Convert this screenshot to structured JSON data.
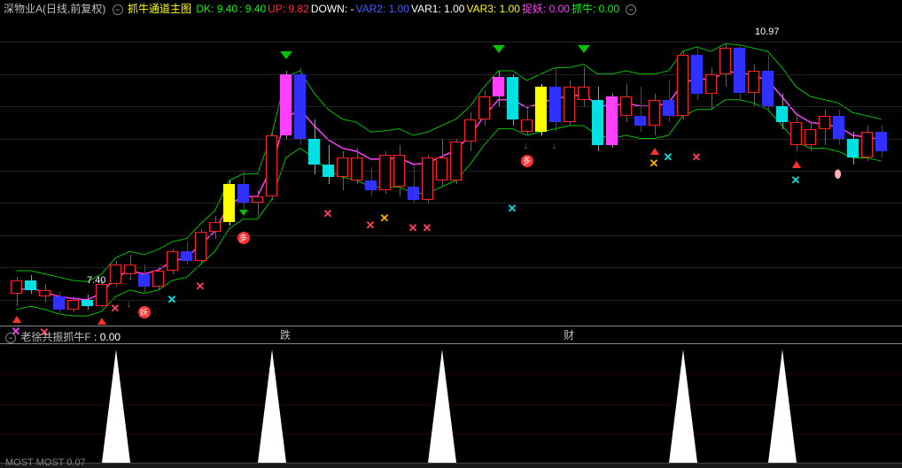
{
  "header": {
    "stock_name": "深物业A(日线,前复权)",
    "indicator_name": "抓牛通道主图",
    "items": [
      {
        "label": "DK:",
        "value": "9.40",
        "color": "#00ff00"
      },
      {
        "label": " : ",
        "value": "9.40",
        "color": "#00ff00"
      },
      {
        "label": " UP:",
        "value": "9.82",
        "color": "#ff3030"
      },
      {
        "label": " DOWN:",
        "value": "-",
        "color": "#ffffff"
      },
      {
        "label": "  VAR2:",
        "value": "1.00",
        "color": "#4060ff"
      },
      {
        "label": "  VAR1:",
        "value": "1.00",
        "color": "#ffffff"
      },
      {
        "label": "  VAR3:",
        "value": "1.00",
        "color": "#ffff00"
      },
      {
        "label": "  捉妖:",
        "value": "0.00",
        "color": "#ff40ff"
      },
      {
        "label": "  抓牛:",
        "value": "0.00",
        "color": "#00ff00"
      }
    ]
  },
  "chart": {
    "ylim": [
      6.6,
      11.4
    ],
    "grid_y": [
      7.0,
      7.5,
      8.0,
      8.5,
      9.0,
      9.5,
      10.0,
      10.5,
      11.0
    ],
    "price_labels": [
      {
        "text": "7.40",
        "x": 98,
        "y_price": 7.3
      },
      {
        "text": "10.97",
        "x": 852,
        "y_price": 11.15
      }
    ],
    "candle_width": 13,
    "candle_gap": 3,
    "x_start": 12,
    "candles": [
      {
        "o": 7.1,
        "h": 7.35,
        "l": 6.9,
        "c": 7.3,
        "col": "#ff2020"
      },
      {
        "o": 7.3,
        "h": 7.38,
        "l": 7.1,
        "c": 7.15,
        "col": "#00e0e0"
      },
      {
        "o": 7.15,
        "h": 7.25,
        "l": 6.95,
        "c": 7.05,
        "col": "#ff2020"
      },
      {
        "o": 7.05,
        "h": 7.12,
        "l": 6.8,
        "c": 6.85,
        "col": "#3030ff"
      },
      {
        "o": 6.85,
        "h": 7.05,
        "l": 6.8,
        "c": 7.0,
        "col": "#ff2020"
      },
      {
        "o": 7.0,
        "h": 7.08,
        "l": 6.85,
        "c": 6.9,
        "col": "#00e0e0"
      },
      {
        "o": 6.9,
        "h": 7.3,
        "l": 6.88,
        "c": 7.25,
        "col": "#ff2020"
      },
      {
        "o": 7.25,
        "h": 7.6,
        "l": 7.2,
        "c": 7.55,
        "col": "#ff2020"
      },
      {
        "o": 7.55,
        "h": 7.7,
        "l": 7.3,
        "c": 7.4,
        "col": "#ff2020"
      },
      {
        "o": 7.4,
        "h": 7.55,
        "l": 7.1,
        "c": 7.2,
        "col": "#3030ff"
      },
      {
        "o": 7.2,
        "h": 7.5,
        "l": 7.15,
        "c": 7.45,
        "col": "#ff2020"
      },
      {
        "o": 7.45,
        "h": 7.8,
        "l": 7.4,
        "c": 7.75,
        "col": "#ff2020"
      },
      {
        "o": 7.75,
        "h": 7.9,
        "l": 7.55,
        "c": 7.6,
        "col": "#3030ff"
      },
      {
        "o": 7.6,
        "h": 8.1,
        "l": 7.55,
        "c": 8.05,
        "col": "#ff2020"
      },
      {
        "o": 8.05,
        "h": 8.3,
        "l": 7.95,
        "c": 8.2,
        "col": "#ff2020"
      },
      {
        "o": 8.2,
        "h": 8.85,
        "l": 8.15,
        "c": 8.8,
        "col": "#ffff00"
      },
      {
        "o": 8.8,
        "h": 9.0,
        "l": 8.4,
        "c": 8.5,
        "col": "#3030ff"
      },
      {
        "o": 8.5,
        "h": 8.7,
        "l": 8.3,
        "c": 8.6,
        "col": "#ff2020"
      },
      {
        "o": 8.6,
        "h": 9.6,
        "l": 8.55,
        "c": 9.55,
        "col": "#ff2020"
      },
      {
        "o": 9.55,
        "h": 10.55,
        "l": 9.5,
        "c": 10.5,
        "col": "#ff40ff"
      },
      {
        "o": 10.5,
        "h": 10.6,
        "l": 9.4,
        "c": 9.5,
        "col": "#3030ff"
      },
      {
        "o": 9.5,
        "h": 9.8,
        "l": 8.95,
        "c": 9.1,
        "col": "#00e0e0"
      },
      {
        "o": 9.1,
        "h": 9.4,
        "l": 8.8,
        "c": 8.9,
        "col": "#00e0e0"
      },
      {
        "o": 8.9,
        "h": 9.3,
        "l": 8.7,
        "c": 9.2,
        "col": "#ff2020"
      },
      {
        "o": 9.2,
        "h": 9.35,
        "l": 8.8,
        "c": 8.85,
        "col": "#ff2020"
      },
      {
        "o": 8.85,
        "h": 9.05,
        "l": 8.6,
        "c": 8.7,
        "col": "#3030ff"
      },
      {
        "o": 8.7,
        "h": 9.3,
        "l": 8.65,
        "c": 9.25,
        "col": "#ff2020"
      },
      {
        "o": 9.25,
        "h": 9.4,
        "l": 8.6,
        "c": 8.75,
        "col": "#ff2020"
      },
      {
        "o": 8.75,
        "h": 9.1,
        "l": 8.5,
        "c": 8.55,
        "col": "#3030ff"
      },
      {
        "o": 8.55,
        "h": 9.25,
        "l": 8.5,
        "c": 9.2,
        "col": "#ff2020"
      },
      {
        "o": 9.2,
        "h": 9.5,
        "l": 8.75,
        "c": 8.85,
        "col": "#ff2020"
      },
      {
        "o": 8.85,
        "h": 9.5,
        "l": 8.8,
        "c": 9.45,
        "col": "#ff2020"
      },
      {
        "o": 9.45,
        "h": 9.9,
        "l": 9.3,
        "c": 9.8,
        "col": "#ff2020"
      },
      {
        "o": 9.8,
        "h": 10.25,
        "l": 9.7,
        "c": 10.15,
        "col": "#ff2020"
      },
      {
        "o": 10.15,
        "h": 10.55,
        "l": 10.0,
        "c": 10.45,
        "col": "#ff40ff"
      },
      {
        "o": 10.45,
        "h": 10.5,
        "l": 9.7,
        "c": 9.8,
        "col": "#00e0e0"
      },
      {
        "o": 9.8,
        "h": 10.0,
        "l": 9.55,
        "c": 9.6,
        "col": "#ff2020"
      },
      {
        "o": 9.6,
        "h": 10.35,
        "l": 9.55,
        "c": 10.3,
        "col": "#ffff00"
      },
      {
        "o": 10.3,
        "h": 10.6,
        "l": 9.6,
        "c": 9.75,
        "col": "#3030ff"
      },
      {
        "o": 9.75,
        "h": 10.4,
        "l": 9.7,
        "c": 10.3,
        "col": "#ff2020"
      },
      {
        "o": 10.3,
        "h": 10.6,
        "l": 10.0,
        "c": 10.1,
        "col": "#ff2020"
      },
      {
        "o": 10.1,
        "h": 10.3,
        "l": 9.3,
        "c": 9.4,
        "col": "#00e0e0"
      },
      {
        "o": 9.4,
        "h": 10.2,
        "l": 9.35,
        "c": 10.15,
        "col": "#ff40ff"
      },
      {
        "o": 10.15,
        "h": 10.35,
        "l": 9.75,
        "c": 9.85,
        "col": "#ff2020"
      },
      {
        "o": 9.85,
        "h": 10.3,
        "l": 9.6,
        "c": 9.7,
        "col": "#3030ff"
      },
      {
        "o": 9.7,
        "h": 10.2,
        "l": 9.55,
        "c": 10.1,
        "col": "#ff2020"
      },
      {
        "o": 10.1,
        "h": 10.4,
        "l": 9.75,
        "c": 9.85,
        "col": "#3030ff"
      },
      {
        "o": 9.85,
        "h": 10.85,
        "l": 9.8,
        "c": 10.8,
        "col": "#ff2020"
      },
      {
        "o": 10.8,
        "h": 10.9,
        "l": 10.1,
        "c": 10.2,
        "col": "#3030ff"
      },
      {
        "o": 10.2,
        "h": 10.6,
        "l": 9.95,
        "c": 10.5,
        "col": "#ff2020"
      },
      {
        "o": 10.5,
        "h": 10.97,
        "l": 10.3,
        "c": 10.9,
        "col": "#ff2020"
      },
      {
        "o": 10.9,
        "h": 10.95,
        "l": 10.1,
        "c": 10.2,
        "col": "#3030ff"
      },
      {
        "o": 10.2,
        "h": 10.65,
        "l": 10.0,
        "c": 10.55,
        "col": "#ff2020"
      },
      {
        "o": 10.55,
        "h": 10.8,
        "l": 9.9,
        "c": 10.0,
        "col": "#3030ff"
      },
      {
        "o": 10.0,
        "h": 10.2,
        "l": 9.65,
        "c": 9.75,
        "col": "#00e0e0"
      },
      {
        "o": 9.75,
        "h": 9.9,
        "l": 9.3,
        "c": 9.4,
        "col": "#ff2020"
      },
      {
        "o": 9.4,
        "h": 9.75,
        "l": 9.3,
        "c": 9.65,
        "col": "#ff2020"
      },
      {
        "o": 9.65,
        "h": 9.95,
        "l": 9.4,
        "c": 9.85,
        "col": "#ff2020"
      },
      {
        "o": 9.85,
        "h": 9.95,
        "l": 9.4,
        "c": 9.5,
        "col": "#3030ff"
      },
      {
        "o": 9.5,
        "h": 9.6,
        "l": 9.1,
        "c": 9.2,
        "col": "#00e0e0"
      },
      {
        "o": 9.2,
        "h": 9.7,
        "l": 9.15,
        "c": 9.6,
        "col": "#ff2020"
      },
      {
        "o": 9.6,
        "h": 9.7,
        "l": 9.2,
        "c": 9.3,
        "col": "#3030ff"
      }
    ],
    "lines": [
      {
        "color": "#00c000",
        "width": 1,
        "key": "up"
      },
      {
        "color": "#00c000",
        "width": 1,
        "key": "dn"
      },
      {
        "color": "#ff40ff",
        "width": 1.5,
        "key": "mid"
      }
    ],
    "line_data": {
      "up": [
        7.45,
        7.45,
        7.4,
        7.35,
        7.3,
        7.28,
        7.4,
        7.65,
        7.75,
        7.7,
        7.78,
        7.9,
        7.95,
        8.18,
        8.38,
        8.85,
        8.95,
        8.95,
        9.55,
        10.45,
        10.55,
        10.2,
        9.95,
        9.8,
        9.75,
        9.6,
        9.62,
        9.65,
        9.55,
        9.6,
        9.7,
        9.8,
        10.0,
        10.3,
        10.55,
        10.55,
        10.4,
        10.5,
        10.6,
        10.6,
        10.65,
        10.5,
        10.5,
        10.55,
        10.5,
        10.5,
        10.55,
        10.85,
        10.92,
        10.85,
        10.97,
        10.95,
        10.9,
        10.85,
        10.6,
        10.3,
        10.15,
        10.1,
        10.05,
        9.9,
        9.85,
        9.8
      ],
      "dn": [
        6.85,
        6.9,
        6.85,
        6.78,
        6.75,
        6.75,
        6.82,
        7.05,
        7.15,
        7.1,
        7.15,
        7.3,
        7.35,
        7.55,
        7.75,
        8.1,
        8.25,
        8.25,
        8.55,
        9.2,
        9.35,
        9.2,
        9.0,
        8.9,
        8.85,
        8.75,
        8.75,
        8.75,
        8.65,
        8.65,
        8.75,
        8.85,
        9.1,
        9.4,
        9.65,
        9.65,
        9.55,
        9.6,
        9.65,
        9.7,
        9.7,
        9.55,
        9.5,
        9.55,
        9.5,
        9.5,
        9.55,
        9.85,
        9.95,
        9.95,
        10.1,
        10.1,
        10.05,
        9.95,
        9.7,
        9.45,
        9.35,
        9.35,
        9.3,
        9.2,
        9.2,
        9.15
      ],
      "mid": [
        7.15,
        7.18,
        7.12,
        7.05,
        7.02,
        7.0,
        7.1,
        7.35,
        7.45,
        7.4,
        7.46,
        7.6,
        7.65,
        7.86,
        8.06,
        8.48,
        8.6,
        8.6,
        9.05,
        9.82,
        9.95,
        9.7,
        9.48,
        9.35,
        9.3,
        9.18,
        9.18,
        9.2,
        9.1,
        9.12,
        9.22,
        9.32,
        9.55,
        9.85,
        10.1,
        10.1,
        9.98,
        10.05,
        10.12,
        10.15,
        10.18,
        10.02,
        10.0,
        10.05,
        10.0,
        10.0,
        10.05,
        10.35,
        10.44,
        10.4,
        10.54,
        10.52,
        10.48,
        10.4,
        10.15,
        9.88,
        9.75,
        9.72,
        9.68,
        9.55,
        9.52,
        9.48
      ]
    },
    "markers": {
      "down_triangles": [
        {
          "i": 19,
          "y_price": 10.85,
          "color": "#00c000"
        },
        {
          "i": 16,
          "y_price": 8.4,
          "color": "#00c000",
          "small": true
        },
        {
          "i": 34,
          "y_price": 10.95,
          "color": "#00c000"
        },
        {
          "i": 40,
          "y_price": 10.95,
          "color": "#00c000"
        }
      ],
      "up_arrows": [
        {
          "i": 0,
          "y_price": 6.75,
          "color": "#ff3030"
        },
        {
          "i": 6,
          "y_price": 6.72,
          "color": "#ff3030"
        },
        {
          "i": 45,
          "y_price": 9.35,
          "color": "#ff3030"
        },
        {
          "i": 55,
          "y_price": 9.15,
          "color": "#ff3030"
        }
      ],
      "tiny_down": [
        {
          "i": 8,
          "y_price": 7.0,
          "color": "#00c000"
        },
        {
          "i": 36,
          "y_price": 9.45,
          "color": "#00c000"
        },
        {
          "i": 38,
          "y_price": 9.45,
          "color": "#00c000"
        }
      ],
      "butterflies": [
        {
          "i": 0,
          "y_price": 6.6,
          "color": "#ff40ff"
        },
        {
          "i": 2,
          "y_price": 6.58,
          "color": "#ff4060"
        },
        {
          "i": 7,
          "y_price": 6.95,
          "color": "#ff4060"
        },
        {
          "i": 11,
          "y_price": 7.1,
          "color": "#00e0e0"
        },
        {
          "i": 13,
          "y_price": 7.3,
          "color": "#ff4060"
        },
        {
          "i": 22,
          "y_price": 8.42,
          "color": "#ff4060"
        },
        {
          "i": 25,
          "y_price": 8.25,
          "color": "#ff4060"
        },
        {
          "i": 26,
          "y_price": 8.35,
          "color": "#ffb000"
        },
        {
          "i": 28,
          "y_price": 8.2,
          "color": "#ff4060"
        },
        {
          "i": 29,
          "y_price": 8.2,
          "color": "#ff4060"
        },
        {
          "i": 35,
          "y_price": 8.5,
          "color": "#00e0e0"
        },
        {
          "i": 45,
          "y_price": 9.2,
          "color": "#ffb000"
        },
        {
          "i": 46,
          "y_price": 9.3,
          "color": "#00e0e0"
        },
        {
          "i": 48,
          "y_price": 9.3,
          "color": "#ff4060"
        },
        {
          "i": 55,
          "y_price": 8.95,
          "color": "#00e0e0"
        }
      ],
      "badges": [
        {
          "i": 9,
          "y_price": 6.9,
          "color": "#ff3030",
          "text": "妖"
        },
        {
          "i": 16,
          "y_price": 8.05,
          "color": "#ff3030",
          "text": "多"
        },
        {
          "i": 36,
          "y_price": 9.25,
          "color": "#ff3030",
          "text": "多"
        }
      ],
      "pears": [
        {
          "i": 58,
          "y_price": 9.05,
          "color": "#ffb0b0"
        }
      ]
    },
    "x_labels": [
      {
        "i": 19,
        "text": "跌"
      },
      {
        "i": 39,
        "text": "财"
      }
    ]
  },
  "sub": {
    "header_name": "老徐共振抓牛F",
    "header_value": ": 0.00",
    "header_color": "#ffffff",
    "grid_rows": 4,
    "spikes": [
      7,
      18,
      30,
      47,
      54
    ],
    "spike_color": "#ffffff",
    "spike_height": 128,
    "spike_halfwidth": 16
  },
  "bottom": {
    "text": "MOST  MOST  0.07"
  }
}
